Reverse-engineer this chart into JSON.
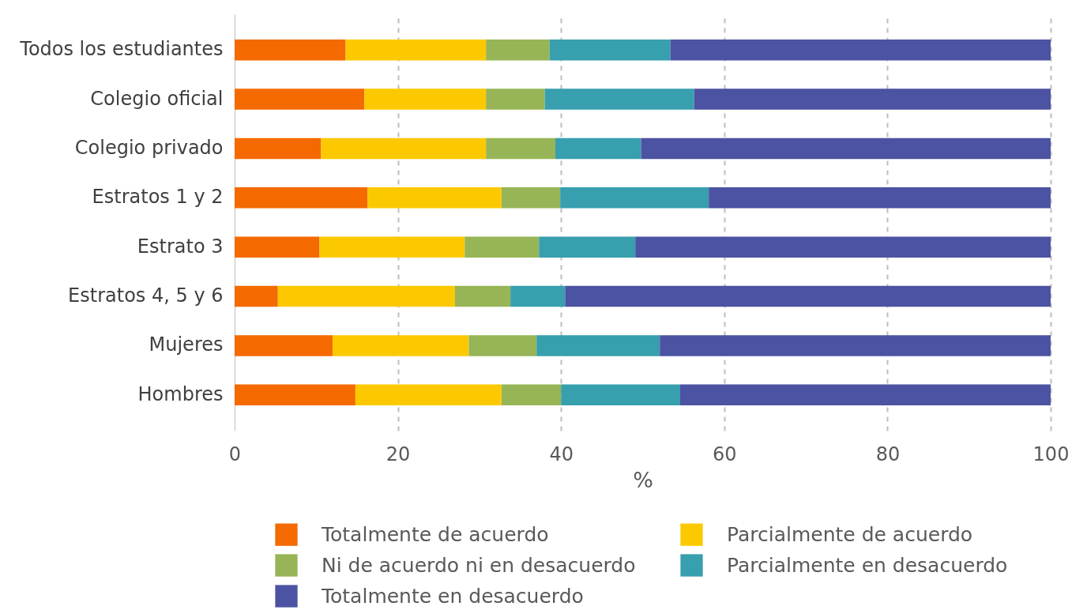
{
  "chart_data": {
    "type": "bar",
    "orientation": "horizontal",
    "stacked": true,
    "categories": [
      "Todos los estudiantes",
      "Colegio oficial",
      "Colegio privado",
      "Estratos 1 y 2",
      "Estrato 3",
      "Estratos 4, 5 y 6",
      "Mujeres",
      "Hombres"
    ],
    "series": [
      {
        "name": "Totalmente de acuerdo",
        "color": "#f46a00",
        "values": [
          13.6,
          15.9,
          10.6,
          16.3,
          10.4,
          5.3,
          12.0,
          14.8
        ]
      },
      {
        "name": "Parcialmente de acuerdo",
        "color": "#fcc900",
        "values": [
          17.2,
          14.9,
          20.2,
          16.4,
          17.8,
          21.7,
          16.7,
          17.9
        ]
      },
      {
        "name": "Ni de acuerdo ni en desacuerdo",
        "color": "#97b556",
        "values": [
          7.8,
          7.2,
          8.5,
          7.2,
          9.1,
          6.8,
          8.3,
          7.3
        ]
      },
      {
        "name": "Parcialmente en desacuerdo",
        "color": "#379fae",
        "values": [
          14.8,
          18.3,
          10.5,
          18.2,
          11.8,
          6.7,
          15.1,
          14.6
        ]
      },
      {
        "name": "Totalmente en desacuerdo",
        "color": "#4c53a2",
        "values": [
          46.6,
          43.7,
          50.2,
          41.9,
          50.9,
          59.5,
          47.9,
          45.4
        ]
      }
    ],
    "xlabel": "%",
    "xlim": [
      0,
      100
    ],
    "xticks": [
      0,
      20,
      40,
      60,
      80,
      100
    ],
    "grid": "x",
    "legend": "bottom"
  }
}
